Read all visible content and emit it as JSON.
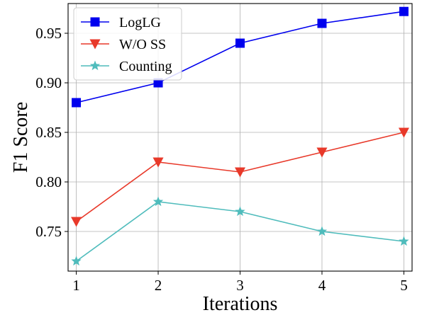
{
  "chart_data": {
    "type": "line",
    "x": [
      1,
      2,
      3,
      4,
      5
    ],
    "xlabel": "Iterations",
    "ylabel": "F1 Score",
    "xlim": [
      0.9,
      5.1
    ],
    "ylim": [
      0.71,
      0.98
    ],
    "xticks": [
      1,
      2,
      3,
      4,
      5
    ],
    "yticks": [
      0.75,
      0.8,
      0.85,
      0.9,
      0.95
    ],
    "ytick_labels": [
      "0.75",
      "0.80",
      "0.85",
      "0.90",
      "0.95"
    ],
    "grid": true,
    "legend": "top-left",
    "series": [
      {
        "name": "LogLG",
        "values": [
          0.88,
          0.9,
          0.94,
          0.96,
          0.972
        ],
        "color": "#0000ee",
        "marker": "square"
      },
      {
        "name": "W/O SS",
        "values": [
          0.76,
          0.82,
          0.81,
          0.83,
          0.85
        ],
        "color": "#e8392a",
        "marker": "triangle-down"
      },
      {
        "name": "Counting",
        "values": [
          0.72,
          0.78,
          0.77,
          0.75,
          0.74
        ],
        "color": "#4fbcbc",
        "marker": "star"
      }
    ]
  }
}
